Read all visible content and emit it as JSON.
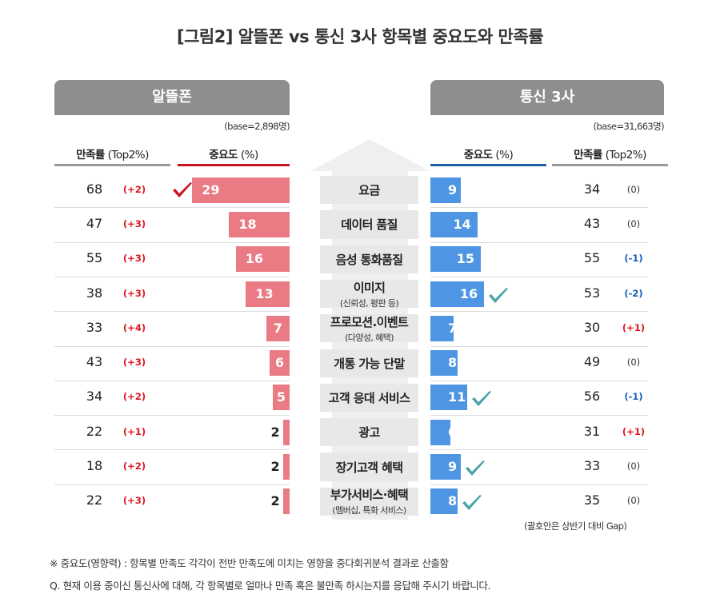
{
  "title": "[그림2] 알뜰폰 vs 통신 3사 항목별 중요도와 만족률",
  "left_panel": {
    "header": "알뜰폰",
    "base": "(base=2,898명)",
    "col_satisfaction": "만족률",
    "col_satisfaction_unit": "(Top2%)",
    "col_importance": "중요도",
    "col_importance_unit": "(%)"
  },
  "right_panel": {
    "header": "통신 3사",
    "base": "(base=31,663명)",
    "col_importance": "중요도",
    "col_importance_unit": "(%)",
    "col_satisfaction": "만족률",
    "col_satisfaction_unit": "(Top2%)",
    "gap_note": "(괄호안은 상반기 대비 Gap)"
  },
  "colors": {
    "mvno_bar": "#ea7a83",
    "mno_bar": "#4e96e4",
    "mvno_accent": "#c8141f",
    "mno_accent": "#1f5fa8",
    "header_gray": "#8e8e8e",
    "positive_gap": "#e0151f",
    "negative_gap": "#1360b9",
    "check_red": "#c8141f",
    "check_teal": "#4aa3a8"
  },
  "chart_data": {
    "type": "bar",
    "categories": [
      {
        "main": "요금",
        "sub": ""
      },
      {
        "main": "데이터  품질",
        "sub": ""
      },
      {
        "main": "음성 통화품질",
        "sub": ""
      },
      {
        "main": "이미지",
        "sub": "(신뢰성, 평판 등)"
      },
      {
        "main": "프로모션.이벤트",
        "sub": "(다양성, 혜택)"
      },
      {
        "main": "개통 가능 단말",
        "sub": ""
      },
      {
        "main": "고객 응대 서비스",
        "sub": ""
      },
      {
        "main": "광고",
        "sub": ""
      },
      {
        "main": "장기고객 혜택",
        "sub": ""
      },
      {
        "main": "부가서비스·혜택",
        "sub": "(멤버십, 특화 서비스)"
      }
    ],
    "series": [
      {
        "name": "알뜰폰",
        "importance": [
          29,
          18,
          16,
          13,
          7,
          6,
          5,
          2,
          2,
          2
        ],
        "satisfaction": [
          68,
          47,
          55,
          38,
          33,
          43,
          34,
          22,
          18,
          22
        ],
        "gap": [
          "(+2)",
          "(+3)",
          "(+3)",
          "(+3)",
          "(+4)",
          "(+3)",
          "(+2)",
          "(+1)",
          "(+2)",
          "(+3)"
        ],
        "check": [
          true,
          false,
          false,
          false,
          false,
          false,
          false,
          false,
          false,
          false
        ]
      },
      {
        "name": "통신 3사",
        "importance": [
          9,
          14,
          15,
          16,
          7,
          8,
          11,
          6,
          9,
          8
        ],
        "satisfaction": [
          34,
          43,
          55,
          53,
          30,
          49,
          56,
          31,
          33,
          35
        ],
        "gap": [
          "(0)",
          "(0)",
          "(-1)",
          "(-2)",
          "(+1)",
          "(0)",
          "(-1)",
          "(+1)",
          "(0)",
          "(0)"
        ],
        "check": [
          false,
          false,
          false,
          true,
          false,
          false,
          true,
          false,
          true,
          true
        ]
      }
    ]
  },
  "footnotes": [
    "※ 중요도(영향력) : 항목별 만족도 각각이 전반 만족도에 미치는 영향을 중다회귀분석 결과로 산출함",
    "Q. 현재 이용 중이신 통신사에 대해, 각 항목별로 얼마나 만족 혹은 불만족 하시는지를 응답해 주시기 바랍니다."
  ]
}
